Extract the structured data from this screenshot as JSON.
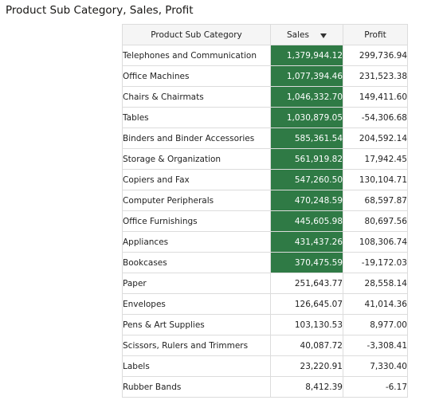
{
  "title": "Product Sub Category, Sales, Profit",
  "columns": {
    "category": "Product Sub Category",
    "sales": "Sales",
    "profit": "Profit"
  },
  "sort": {
    "column": "Sales",
    "direction": "descending",
    "icon": "sort-descending-icon"
  },
  "colors": {
    "highlight_fill": "#2f7a45",
    "highlight_text": "#ffffff",
    "header_fill": "#f5f5f5",
    "grid": "#dcdcdc"
  },
  "rows": [
    {
      "category": "Telephones and Communication",
      "sales": "1,379,944.12",
      "profit": "299,736.94",
      "highlighted": true
    },
    {
      "category": "Office Machines",
      "sales": "1,077,394.46",
      "profit": "231,523.38",
      "highlighted": true
    },
    {
      "category": "Chairs & Chairmats",
      "sales": "1,046,332.70",
      "profit": "149,411.60",
      "highlighted": true
    },
    {
      "category": "Tables",
      "sales": "1,030,879.05",
      "profit": "-54,306.68",
      "highlighted": true
    },
    {
      "category": "Binders and Binder Accessories",
      "sales": "585,361.54",
      "profit": "204,592.14",
      "highlighted": true
    },
    {
      "category": "Storage & Organization",
      "sales": "561,919.82",
      "profit": "17,942.45",
      "highlighted": true
    },
    {
      "category": "Copiers and Fax",
      "sales": "547,260.50",
      "profit": "130,104.71",
      "highlighted": true
    },
    {
      "category": "Computer Peripherals",
      "sales": "470,248.59",
      "profit": "68,597.87",
      "highlighted": true
    },
    {
      "category": "Office Furnishings",
      "sales": "445,605.98",
      "profit": "80,697.56",
      "highlighted": true
    },
    {
      "category": "Appliances",
      "sales": "431,437.26",
      "profit": "108,306.74",
      "highlighted": true
    },
    {
      "category": "Bookcases",
      "sales": "370,475.59",
      "profit": "-19,172.03",
      "highlighted": true
    },
    {
      "category": "Paper",
      "sales": "251,643.77",
      "profit": "28,558.14",
      "highlighted": false
    },
    {
      "category": "Envelopes",
      "sales": "126,645.07",
      "profit": "41,014.36",
      "highlighted": false
    },
    {
      "category": "Pens & Art Supplies",
      "sales": "103,130.53",
      "profit": "8,977.00",
      "highlighted": false
    },
    {
      "category": "Scissors, Rulers and Trimmers",
      "sales": "40,087.72",
      "profit": "-3,308.41",
      "highlighted": false
    },
    {
      "category": "Labels",
      "sales": "23,220.91",
      "profit": "7,330.40",
      "highlighted": false
    },
    {
      "category": "Rubber Bands",
      "sales": "8,412.39",
      "profit": "-6.17",
      "highlighted": false
    }
  ]
}
